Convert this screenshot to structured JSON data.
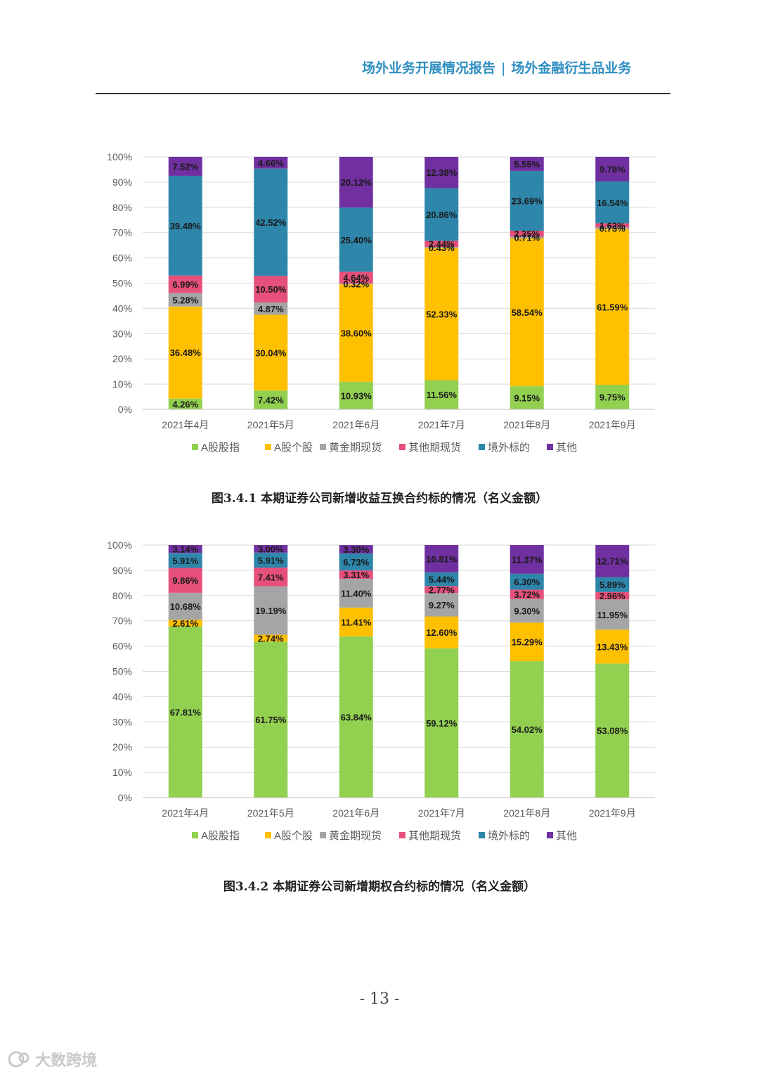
{
  "header": {
    "left": "场外业务开展情况报告",
    "separator": "|",
    "right": "场外金融衍生品业务"
  },
  "colors": {
    "A股股指": "#92d050",
    "A股个股": "#ffc000",
    "黄金期现货": "#a5a5a5",
    "其他期现货": "#e6507a",
    "境外标的": "#2e86ab",
    "其他": "#7030a0"
  },
  "chart_data": [
    {
      "type": "bar",
      "stacked": true,
      "categories": [
        "2021年4月",
        "2021年5月",
        "2021年6月",
        "2021年7月",
        "2021年8月",
        "2021年9月"
      ],
      "ylim": [
        0,
        100
      ],
      "yticks": [
        "0%",
        "10%",
        "20%",
        "30%",
        "40%",
        "50%",
        "60%",
        "70%",
        "80%",
        "90%",
        "100%"
      ],
      "legend_position": "bottom",
      "series": [
        {
          "name": "A股股指",
          "values": [
            4.26,
            7.42,
            10.93,
            11.56,
            9.15,
            9.75
          ],
          "labels": [
            "4.26%",
            "7.42%",
            "10.93%",
            "11.56%",
            "9.15%",
            "9.75%"
          ]
        },
        {
          "name": "A股个股",
          "values": [
            36.48,
            30.04,
            38.6,
            52.33,
            58.54,
            61.59
          ],
          "labels": [
            "36.48%",
            "30.04%",
            "38.60%",
            "52.33%",
            "58.54%",
            "61.59%"
          ]
        },
        {
          "name": "黄金期现货",
          "values": [
            5.28,
            4.87,
            0.32,
            0.43,
            0.71,
            0.73
          ],
          "labels": [
            "5.28%",
            "4.87%",
            "0.32%",
            "0.43%",
            "0.71%",
            "0.73%"
          ]
        },
        {
          "name": "其他期现货",
          "values": [
            6.99,
            10.5,
            4.64,
            2.44,
            2.35,
            1.62
          ],
          "labels": [
            "6.99%",
            "10.50%",
            "4.64%",
            "2.44%",
            "2.35%",
            "1.62%"
          ]
        },
        {
          "name": "境外标的",
          "values": [
            39.48,
            42.52,
            25.4,
            20.86,
            23.69,
            16.54
          ],
          "labels": [
            "39.48%",
            "42.52%",
            "25.40%",
            "20.86%",
            "23.69%",
            "16.54%"
          ]
        },
        {
          "name": "其他",
          "values": [
            7.52,
            4.66,
            20.12,
            12.38,
            5.55,
            9.78
          ],
          "labels": [
            "7.52%",
            "4.66%",
            "20.12%",
            "12.38%",
            "5.55%",
            "9.78%"
          ]
        }
      ],
      "caption": "图3.4.1 本期证券公司新增收益互换合约标的情况（名义金额）"
    },
    {
      "type": "bar",
      "stacked": true,
      "categories": [
        "2021年4月",
        "2021年5月",
        "2021年6月",
        "2021年7月",
        "2021年8月",
        "2021年9月"
      ],
      "ylim": [
        0,
        100
      ],
      "yticks": [
        "0%",
        "10%",
        "20%",
        "30%",
        "40%",
        "50%",
        "60%",
        "70%",
        "80%",
        "90%",
        "100%"
      ],
      "legend_position": "bottom",
      "series": [
        {
          "name": "A股股指",
          "values": [
            67.81,
            61.75,
            63.84,
            59.12,
            54.02,
            53.08
          ],
          "labels": [
            "67.81%",
            "61.75%",
            "63.84%",
            "59.12%",
            "54.02%",
            "53.08%"
          ]
        },
        {
          "name": "A股个股",
          "values": [
            2.61,
            2.74,
            11.41,
            12.6,
            15.29,
            13.43
          ],
          "labels": [
            "2.61%",
            "2.74%",
            "11.41%",
            "12.60%",
            "15.29%",
            "13.43%"
          ]
        },
        {
          "name": "黄金期现货",
          "values": [
            10.68,
            19.19,
            11.4,
            9.27,
            9.3,
            11.95
          ],
          "labels": [
            "10.68%",
            "19.19%",
            "11.40%",
            "9.27%",
            "9.30%",
            "11.95%"
          ]
        },
        {
          "name": "其他期现货",
          "values": [
            9.86,
            7.41,
            3.31,
            2.77,
            3.72,
            2.96
          ],
          "labels": [
            "9.86%",
            "7.41%",
            "3.31%",
            "2.77%",
            "3.72%",
            "2.96%"
          ]
        },
        {
          "name": "境外标的",
          "values": [
            5.91,
            5.91,
            6.73,
            5.44,
            6.3,
            5.89
          ],
          "labels": [
            "5.91%",
            "5.91%",
            "6.73%",
            "5.44%",
            "6.30%",
            "5.89%"
          ]
        },
        {
          "name": "其他",
          "values": [
            3.14,
            3.0,
            3.3,
            10.81,
            11.37,
            12.71
          ],
          "labels": [
            "3.14%",
            "3.00%",
            "3.30%",
            "10.81%",
            "11.37%",
            "12.71%"
          ]
        }
      ],
      "caption": "图3.4.2 本期证券公司新增期权合约标的情况（名义金额）"
    }
  ],
  "page_number": "- 13 -",
  "watermark": "大数跨境"
}
